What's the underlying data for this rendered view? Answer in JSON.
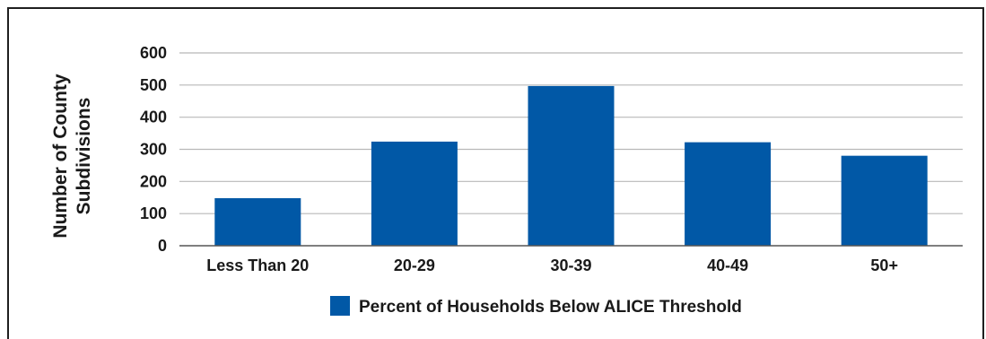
{
  "chart_data": {
    "type": "bar",
    "categories": [
      "Less Than 20",
      "20-29",
      "30-39",
      "40-49",
      "50+"
    ],
    "values": [
      148,
      324,
      497,
      322,
      280
    ],
    "ylabel_line1": "Number of County",
    "ylabel_line2": "Subdivisions",
    "xlabel": "",
    "ylim": [
      0,
      600
    ],
    "yticks": [
      0,
      100,
      200,
      300,
      400,
      500,
      600
    ],
    "grid": true,
    "legend": {
      "placement": "bottom-center",
      "entries": [
        "Percent of Households Below ALICE Threshold"
      ]
    },
    "colors": {
      "bar": "#0158a6",
      "grid": "#b8b8b8",
      "axis": "#555555"
    }
  }
}
